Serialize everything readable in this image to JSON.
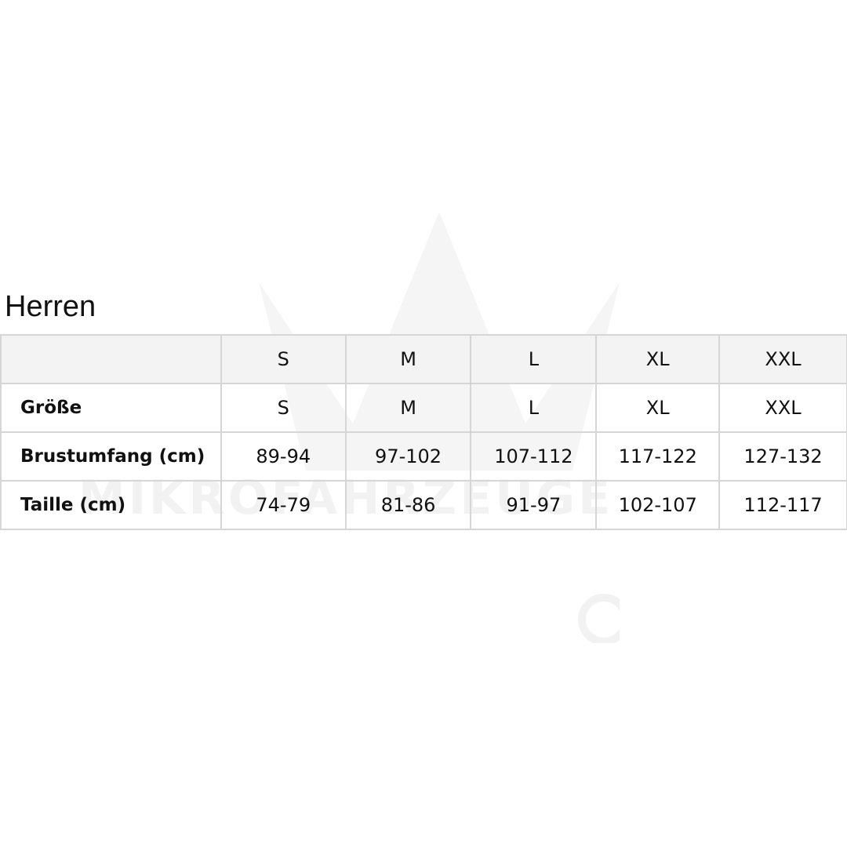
{
  "title": "Herren",
  "watermark": "MIKROFAHRZEUGE",
  "columns": [
    "",
    "S",
    "M",
    "L",
    "XL",
    "XXL"
  ],
  "rows": [
    {
      "label": "Größe",
      "values": [
        "S",
        "M",
        "L",
        "XL",
        "XXL"
      ]
    },
    {
      "label": "Brustumfang (cm)",
      "values": [
        "89-94",
        "97-102",
        "107-112",
        "117-122",
        "127-132"
      ]
    },
    {
      "label": "Taille (cm)",
      "values": [
        "74-79",
        "81-86",
        "91-97",
        "102-107",
        "112-117"
      ]
    }
  ]
}
